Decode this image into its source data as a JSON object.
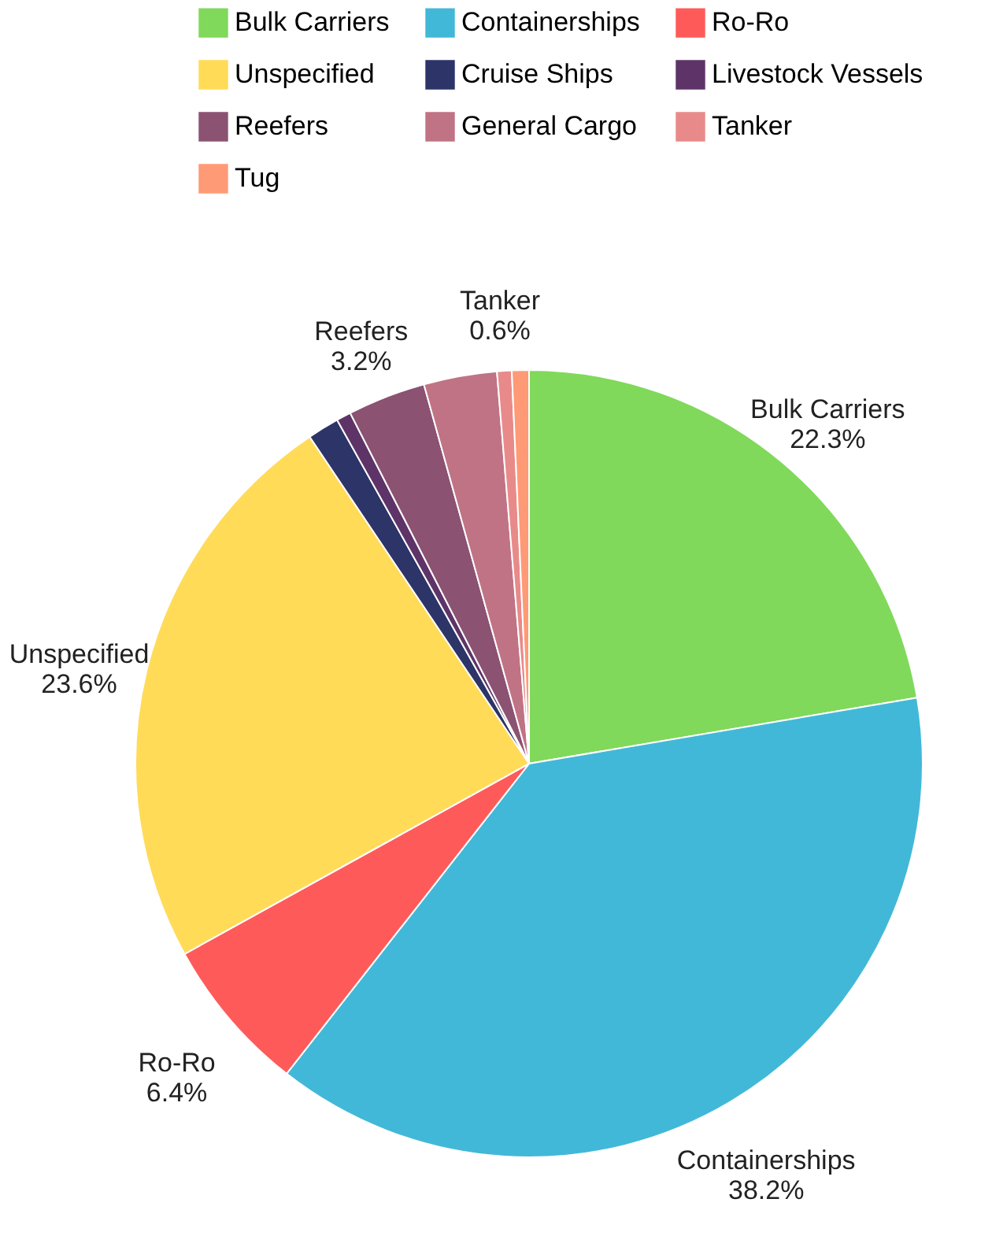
{
  "chart_data": {
    "type": "pie",
    "categories": [
      "Bulk Carriers",
      "Containerships",
      "Ro-Ro",
      "Unspecified",
      "Cruise Ships",
      "Livestock Vessels",
      "Reefers",
      "General Cargo",
      "Tanker",
      "Tug"
    ],
    "values": [
      22.3,
      38.2,
      6.4,
      23.6,
      1.3,
      0.6,
      3.2,
      3.0,
      0.6,
      0.7
    ],
    "value_labels": [
      "22.3%",
      "38.2%",
      "6.4%",
      "23.6%",
      null,
      null,
      "3.2%",
      null,
      "0.6%",
      null
    ],
    "colors": [
      "#80d95a",
      "#42b8d8",
      "#ff5a5a",
      "#ffdb58",
      "#2c3468",
      "#5e3468",
      "#8b5272",
      "#c07384",
      "#e88a8a",
      "#ff9a76"
    ],
    "legend": "top"
  }
}
